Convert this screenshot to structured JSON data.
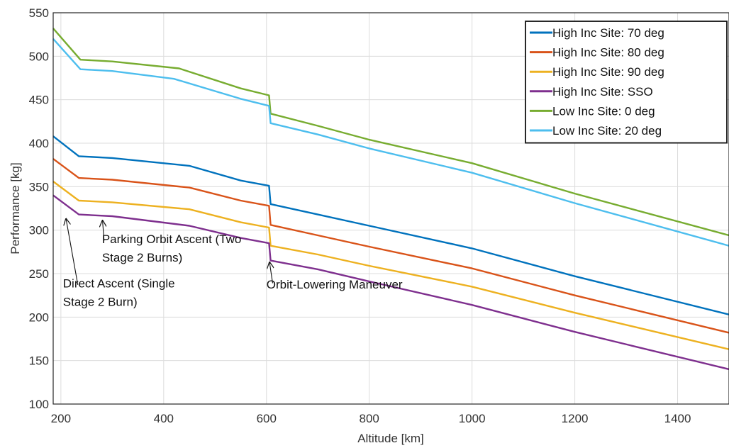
{
  "chart_data": {
    "type": "line",
    "title": "",
    "xlabel": "Altitude [km]",
    "ylabel": "Performance [kg]",
    "xlim": [
      185,
      1500
    ],
    "ylim": [
      100,
      550
    ],
    "xticks": [
      200,
      400,
      600,
      800,
      1000,
      1200,
      1400
    ],
    "yticks": [
      100,
      150,
      200,
      250,
      300,
      350,
      400,
      450,
      500,
      550
    ],
    "grid": true,
    "legend_position": "top-right",
    "series": [
      {
        "name": "High Inc Site: 70 deg",
        "color": "#0072BD",
        "x": [
          185,
          235,
          300,
          450,
          550,
          605,
          608,
          700,
          800,
          1000,
          1200,
          1500
        ],
        "y": [
          408,
          385,
          383,
          374,
          357,
          351,
          330,
          318,
          305,
          279,
          247,
          203
        ]
      },
      {
        "name": "High Inc Site: 80 deg",
        "color": "#D95319",
        "x": [
          185,
          235,
          300,
          450,
          550,
          605,
          608,
          700,
          800,
          1000,
          1200,
          1500
        ],
        "y": [
          382,
          360,
          358,
          349,
          334,
          328,
          306,
          294,
          281,
          256,
          225,
          182
        ]
      },
      {
        "name": "High Inc Site: 90 deg",
        "color": "#EDB120",
        "x": [
          185,
          235,
          300,
          450,
          550,
          605,
          608,
          700,
          800,
          1000,
          1200,
          1500
        ],
        "y": [
          356,
          334,
          332,
          324,
          309,
          303,
          282,
          272,
          259,
          235,
          205,
          163
        ]
      },
      {
        "name": "High Inc Site: SSO",
        "color": "#7E2F8E",
        "x": [
          185,
          235,
          300,
          450,
          550,
          605,
          608,
          700,
          800,
          1000,
          1200,
          1500
        ],
        "y": [
          340,
          318,
          316,
          305,
          291,
          285,
          265,
          255,
          241,
          214,
          183,
          140
        ]
      },
      {
        "name": "Low Inc Site: 0 deg",
        "color": "#77AC30",
        "x": [
          185,
          238,
          300,
          430,
          550,
          605,
          608,
          700,
          800,
          1000,
          1200,
          1500
        ],
        "y": [
          532,
          496,
          494,
          486,
          463,
          455,
          434,
          420,
          404,
          377,
          342,
          294
        ]
      },
      {
        "name": "Low Inc Site: 20 deg",
        "color": "#4DBEEE",
        "x": [
          185,
          238,
          300,
          420,
          550,
          605,
          608,
          700,
          800,
          1000,
          1200,
          1500
        ],
        "y": [
          520,
          485,
          483,
          474,
          451,
          443,
          423,
          410,
          394,
          366,
          331,
          282
        ]
      }
    ],
    "annotations": [
      {
        "lines": [
          "Parking Orbit Ascent (Two",
          "Stage 2 Burns)"
        ],
        "text_x": 280,
        "text_y": 285,
        "arrow_from": [
          284,
          288
        ],
        "arrow_to": [
          281,
          311
        ]
      },
      {
        "lines": [
          "Direct Ascent (Single",
          "Stage 2 Burn)"
        ],
        "text_x": 204,
        "text_y": 234,
        "arrow_from": [
          233,
          237
        ],
        "arrow_to": [
          210,
          313
        ]
      },
      {
        "lines": [
          "Orbit-Lowering Maneuver"
        ],
        "text_x": 600,
        "text_y": 233,
        "arrow_from": [
          612,
          239
        ],
        "arrow_to": [
          606,
          263
        ]
      }
    ]
  }
}
